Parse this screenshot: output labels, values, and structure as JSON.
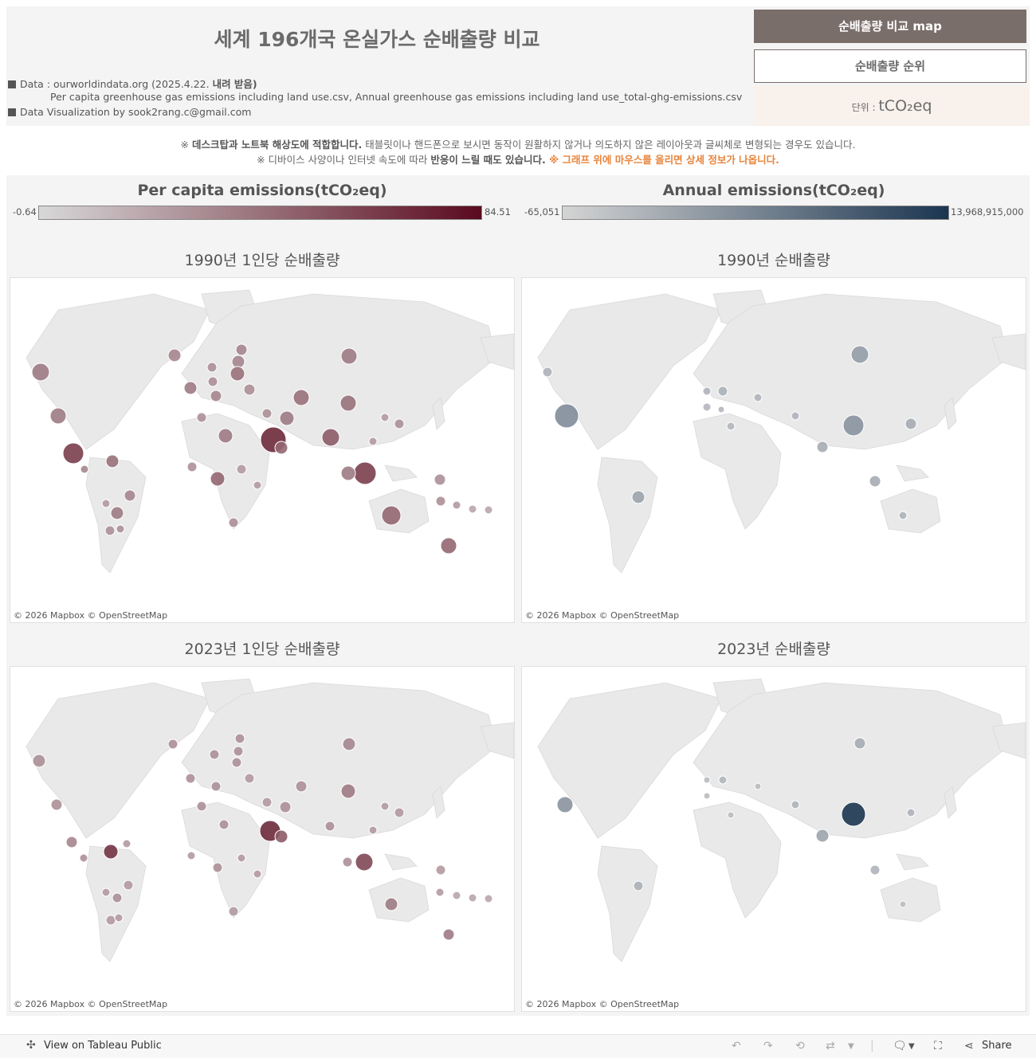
{
  "header": {
    "title": "세계 196개국 온실가스 순배출량 비교",
    "data_label": "Data : ourworldindata.org (2025.4.22. ",
    "data_bold": "내려 받음)",
    "files": "Per capita greenhouse gas emissions including land use.csv,  Annual greenhouse gas emissions including land use_total-ghg-emissions.csv",
    "credit": "Data Visualization by sook2rang.c@gmail.com",
    "nav_map": "순배출량 비교 map",
    "nav_rank": "순배출량 순위",
    "unit_label": "단위 : ",
    "unit_value": "tCO₂eq"
  },
  "notes": {
    "line1_prefix": "※ ",
    "line1_bold": "데스크탑과 노트북 해상도에 적합합니다.",
    "line1_rest": " 태블릿이나 핸드폰으로 보시면 동작이 원활하지 않거나 의도하지 않은 레이아웃과 글씨체로 변형되는 경우도 있습니다.",
    "line2_prefix": "※ 디바이스 사양이나 인터넷 속도에 따라 ",
    "line2_bold": "반응이 느릴 때도 있습니다.",
    "line2_orange": " ※ 그래프 위에 마우스를 올리면 상세 정보가 나옵니다."
  },
  "legends": {
    "per_capita": {
      "title": "Per capita emissions(tCO₂eq)",
      "min": "-0.64",
      "max": "84.51",
      "color_low": "#d8d8d8",
      "color_high": "#5a0a1e"
    },
    "annual": {
      "title": "Annual emissions(tCO₂eq)",
      "min": "-65,051",
      "max": "13,968,915,000",
      "color_low": "#d4d4d4",
      "color_high": "#1b3550"
    }
  },
  "maps": {
    "pc1990": {
      "title": "1990년 1인당 순배출량",
      "attribution": "© 2026 Mapbox  © OpenStreetMap"
    },
    "an1990": {
      "title": "1990년 순배출량",
      "attribution": "© 2026 Mapbox  © OpenStreetMap"
    },
    "pc2023": {
      "title": "2023년 1인당 순배출량",
      "attribution": "© 2026 Mapbox  © OpenStreetMap"
    },
    "an2023": {
      "title": "2023년 순배출량",
      "attribution": "© 2026 Mapbox  © OpenStreetMap"
    }
  },
  "footer": {
    "view_public": "View on Tableau Public",
    "share": "Share"
  }
}
